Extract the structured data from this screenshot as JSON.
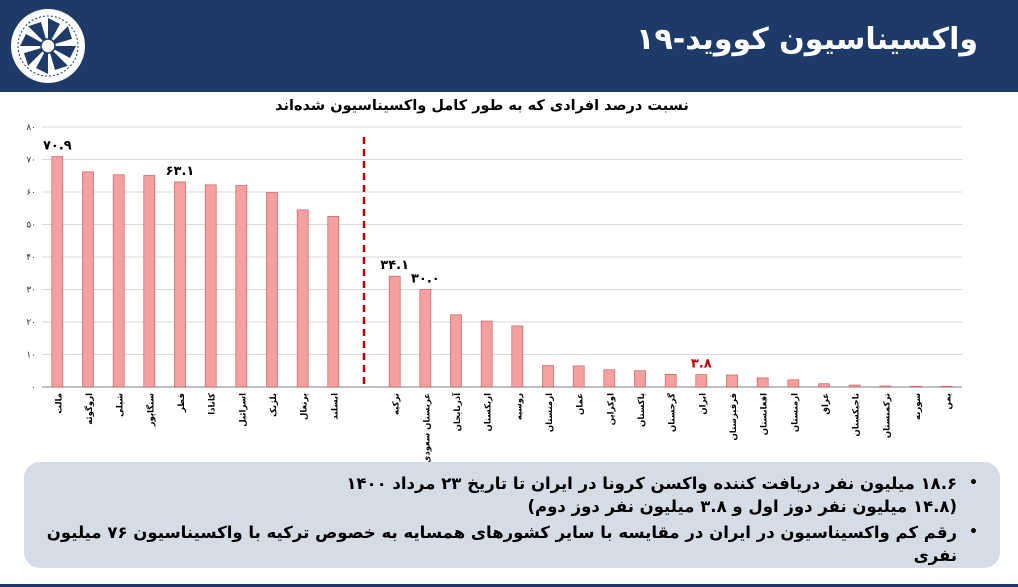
{
  "header": {
    "title": "واکسیناسیون کووید-۱۹"
  },
  "chart_data": {
    "type": "bar",
    "title": "نسبت درصد افرادی که به طور کامل واکسیناسیون شده‌اند",
    "xlabel": "",
    "ylabel": "",
    "ylim": [
      0,
      80
    ],
    "yticks": [
      0,
      10,
      20,
      30,
      40,
      50,
      60,
      70,
      80
    ],
    "ytick_labels": [
      "۰",
      "۱۰",
      "۲۰",
      "۳۰",
      "۴۰",
      "۵۰",
      "۶۰",
      "۷۰",
      "۸۰"
    ],
    "grid": true,
    "groups": [
      {
        "categories": [
          "مالت",
          "اروگوئه",
          "شیلی",
          "سنگاپور",
          "قطر",
          "کانادا",
          "اسرائیل",
          "بلژیک",
          "پرتغال",
          "ایسلند"
        ],
        "values": [
          70.9,
          66.2,
          65.3,
          65.1,
          63.1,
          62.2,
          62.0,
          59.8,
          54.5,
          52.5
        ]
      },
      {
        "categories": [
          "ترکیه",
          "عربستان سعودی",
          "آذربایجان",
          "ازبکستان",
          "روسیه",
          "ارمنستان",
          "عمان",
          "اوکراین",
          "پاکستان",
          "گرجستان",
          "ایران",
          "قرقیزستان",
          "افغانستان",
          "ارمنستان",
          "عراق",
          "تاجیکستان",
          "ترکمنستان",
          "سوریه",
          "یمن"
        ],
        "values": [
          34.1,
          30.0,
          22.2,
          20.3,
          18.8,
          6.6,
          6.5,
          5.3,
          5.0,
          3.9,
          3.8,
          3.7,
          2.8,
          2.2,
          1.0,
          0.6,
          0.3,
          0.2,
          0.2
        ]
      }
    ],
    "data_labels": [
      {
        "group": 0,
        "index": 0,
        "text": "۷۰.۹"
      },
      {
        "group": 0,
        "index": 4,
        "text": "۶۳.۱"
      },
      {
        "group": 1,
        "index": 0,
        "text": "۳۴.۱"
      },
      {
        "group": 1,
        "index": 1,
        "text": "۳۰.۰"
      },
      {
        "group": 1,
        "index": 10,
        "text": "۳.۸",
        "color": "#c00000"
      }
    ],
    "bar_color": "#f4a0a0",
    "bar_edge_color": "#c0504d",
    "divider_color": "#c00000"
  },
  "notes": [
    {
      "lines": [
        "۱۸.۶ میلیون نفر دریافت کننده واکسن کرونا در ایران تا تاریخ ۲۳ مرداد ۱۴۰۰",
        "(۱۴.۸ میلیون نفر دوز اول و ۳.۸ میلیون نفر دوز دوم)"
      ]
    },
    {
      "lines": [
        "رقم کم واکسیناسیون در ایران در مقایسه با سایر کشورهای همسایه به خصوص ترکیه با واکسیناسیون ۷۶ میلیون نفری"
      ]
    }
  ],
  "colors": {
    "header_bg": "#1e3a68",
    "notes_bg": "#d5dce6"
  }
}
